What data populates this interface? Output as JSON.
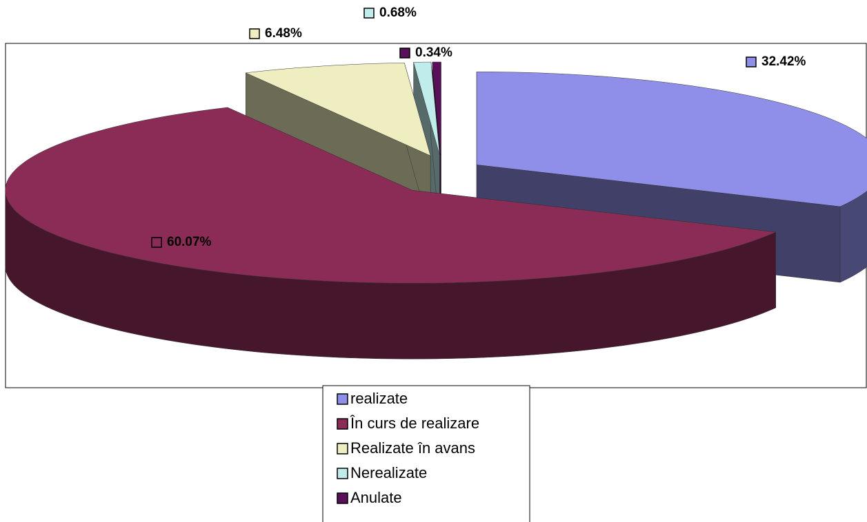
{
  "chart_data": {
    "type": "pie3d",
    "categories": [
      "realizate",
      "În curs de realizare",
      "Realizate în avans",
      "Nerealizate",
      "Anulate"
    ],
    "values": [
      32.42,
      60.07,
      6.48,
      0.68,
      0.34
    ],
    "value_labels": [
      "32.42%",
      "60.07%",
      "6.48%",
      "0.68%",
      "0.34%"
    ],
    "colors": [
      "#8f8fea",
      "#8b2c57",
      "#eeeec0",
      "#c0ecec",
      "#5a0f5a"
    ]
  }
}
